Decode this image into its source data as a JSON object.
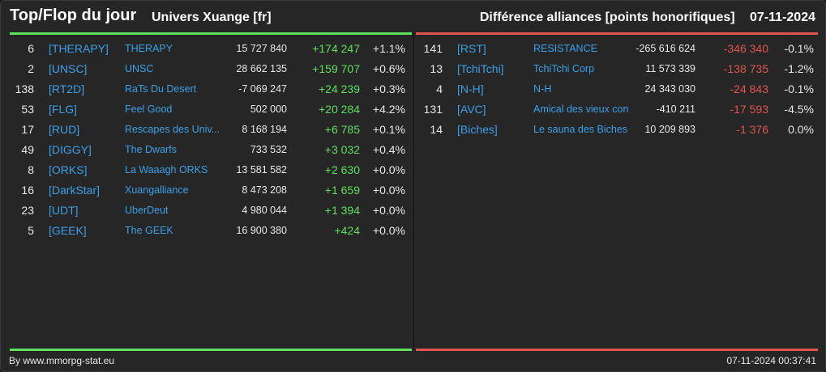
{
  "header": {
    "title": "Top/Flop du jour",
    "subtitle": "Univers Xuange [fr]",
    "right_label": "Différence alliances [points honorifiques]",
    "date": "07-11-2024"
  },
  "top": [
    {
      "rank": "6",
      "tag": "[THERAPY]",
      "name": "THERAPY",
      "points": "15 727 840",
      "diff": "+174 247",
      "pct": "+1.1%"
    },
    {
      "rank": "2",
      "tag": "[UNSC]",
      "name": "UNSC",
      "points": "28 662 135",
      "diff": "+159 707",
      "pct": "+0.6%"
    },
    {
      "rank": "138",
      "tag": "[RT2D]",
      "name": "RaTs Du Desert",
      "points": "-7 069 247",
      "diff": "+24 239",
      "pct": "+0.3%"
    },
    {
      "rank": "53",
      "tag": "[FLG]",
      "name": "Feel Good",
      "points": "502 000",
      "diff": "+20 284",
      "pct": "+4.2%"
    },
    {
      "rank": "17",
      "tag": "[RUD]",
      "name": "Rescapes des Univ...",
      "points": "8 168 194",
      "diff": "+6 785",
      "pct": "+0.1%"
    },
    {
      "rank": "49",
      "tag": "[DIGGY]",
      "name": "The Dwarfs",
      "points": "733 532",
      "diff": "+3 032",
      "pct": "+0.4%"
    },
    {
      "rank": "8",
      "tag": "[ORKS]",
      "name": "La Waaagh ORKS",
      "points": "13 581 582",
      "diff": "+2 630",
      "pct": "+0.0%"
    },
    {
      "rank": "16",
      "tag": "[DarkStar]",
      "name": "Xuangalliance",
      "points": "8 473 208",
      "diff": "+1 659",
      "pct": "+0.0%"
    },
    {
      "rank": "23",
      "tag": "[UDT]",
      "name": "UberDeut",
      "points": "4 980 044",
      "diff": "+1 394",
      "pct": "+0.0%"
    },
    {
      "rank": "5",
      "tag": "[GEEK]",
      "name": "The GEEK",
      "points": "16 900 380",
      "diff": "+424",
      "pct": "+0.0%"
    }
  ],
  "flop": [
    {
      "rank": "141",
      "tag": "[RST]",
      "name": "RESISTANCE",
      "points": "-265 616 624",
      "diff": "-346 340",
      "pct": "-0.1%"
    },
    {
      "rank": "13",
      "tag": "[TchiTchi]",
      "name": "TchiTchi Corp",
      "points": "11 573 339",
      "diff": "-138 735",
      "pct": "-1.2%"
    },
    {
      "rank": "4",
      "tag": "[N-H]",
      "name": "N-H",
      "points": "24 343 030",
      "diff": "-24 843",
      "pct": "-0.1%"
    },
    {
      "rank": "131",
      "tag": "[AVC]",
      "name": "Amical des vieux con",
      "points": "-410 211",
      "diff": "-17 593",
      "pct": "-4.5%"
    },
    {
      "rank": "14",
      "tag": "[Biches]",
      "name": "Le sauna des Biches",
      "points": "10 209 893",
      "diff": "-1 376",
      "pct": "0.0%"
    }
  ],
  "footer": {
    "credit": "By www.mmorpg-stat.eu",
    "timestamp": "07-11-2024 00:37:41"
  },
  "colors": {
    "up": "#5ee05e",
    "down": "#e0554f",
    "link": "#3aa0e8",
    "background": "#262626"
  }
}
